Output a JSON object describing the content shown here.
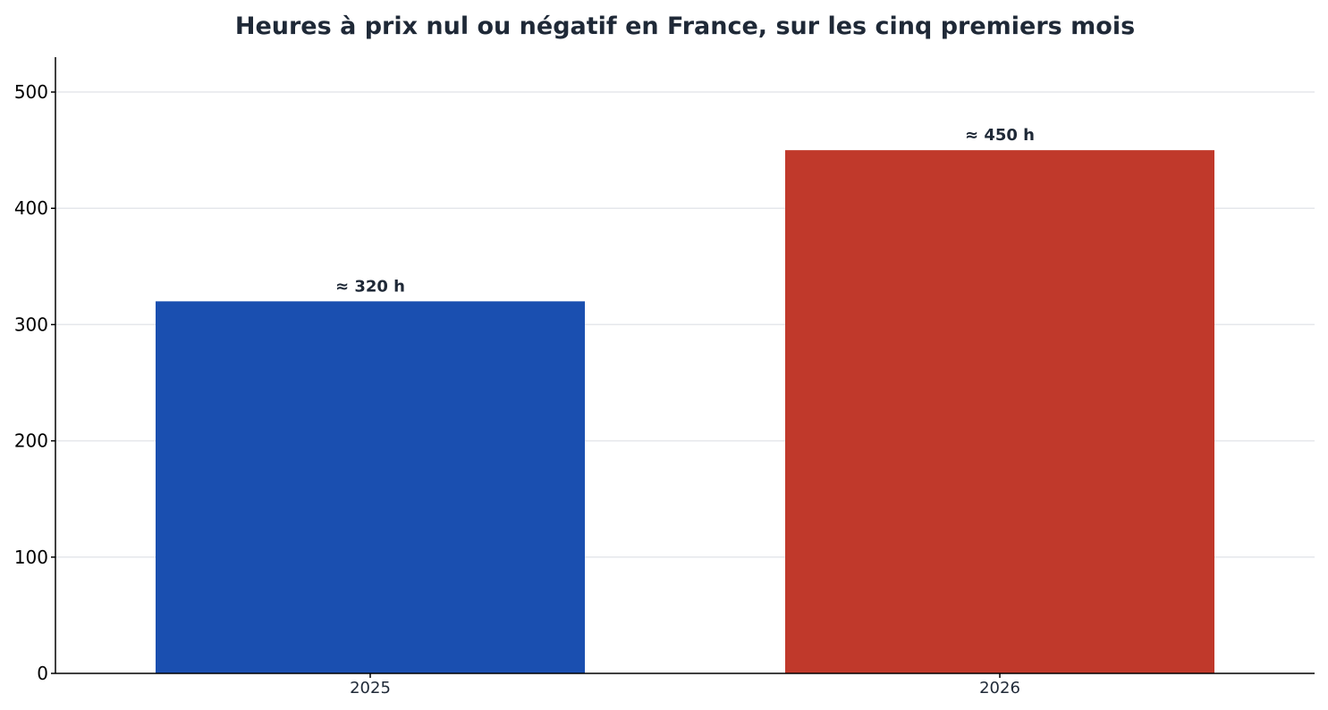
{
  "chart_data": {
    "type": "bar",
    "title": "Heures à prix nul ou négatif en France, sur les cinq premiers mois",
    "xlabel": "",
    "ylabel": "",
    "categories": [
      "2025",
      "2026"
    ],
    "values": [
      320,
      450
    ],
    "data_labels": [
      "≈ 320 h",
      "≈ 450 h"
    ],
    "colors": [
      "#1a4fb0",
      "#c0392b"
    ],
    "ylim": [
      0,
      530
    ],
    "yticks": [
      0,
      100,
      200,
      300,
      400,
      500
    ],
    "ytick_labels": [
      "0",
      "100",
      "200",
      "300",
      "400",
      "500"
    ],
    "grid": "horizontal",
    "legend": "none"
  }
}
